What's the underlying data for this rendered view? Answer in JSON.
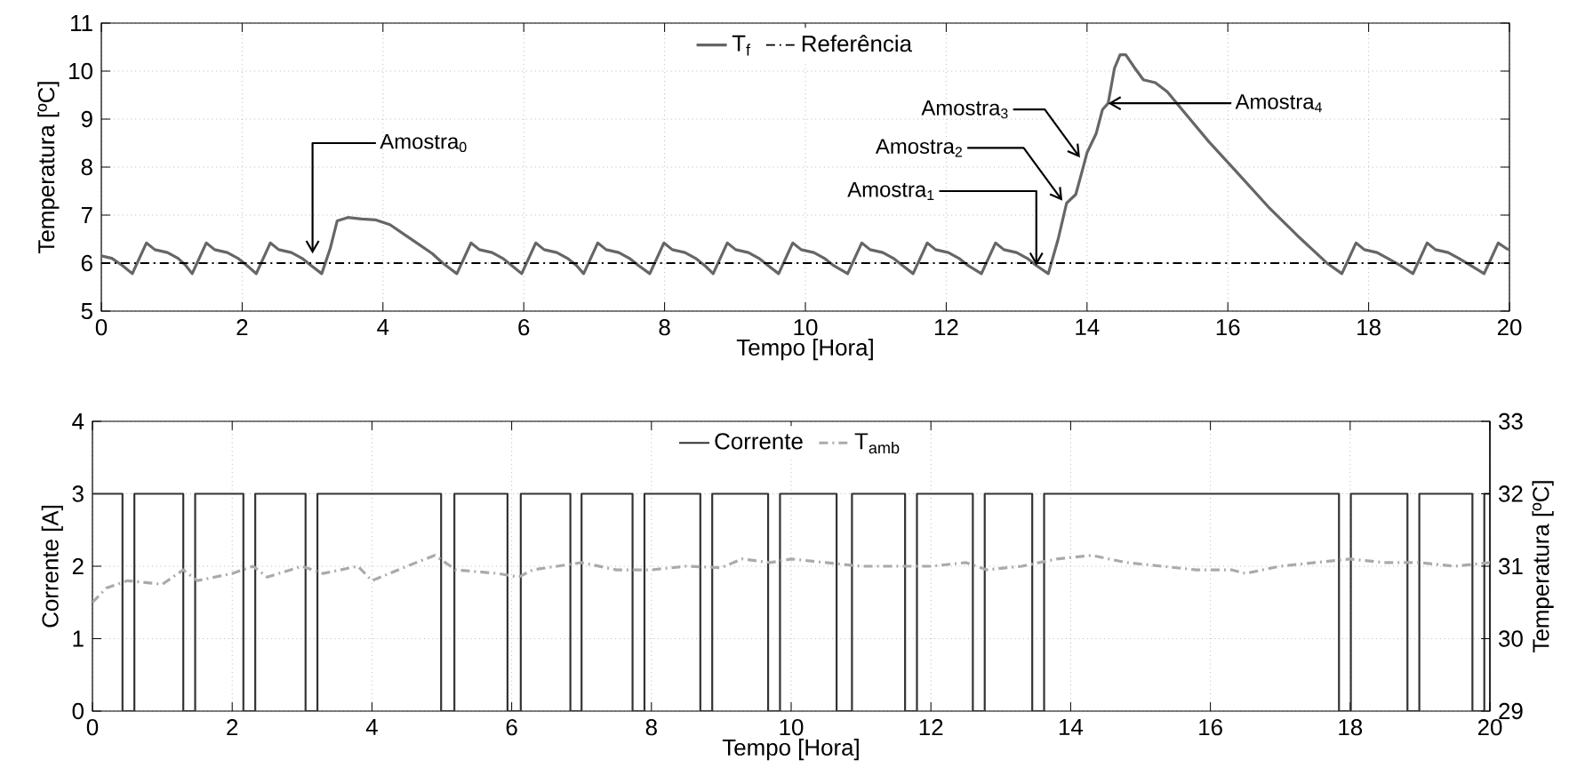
{
  "chart_data": [
    {
      "type": "line",
      "xlabel": "Tempo [Hora]",
      "ylabel": "Temperatura [ºC]",
      "xlim": [
        0,
        20
      ],
      "ylim": [
        5,
        11
      ],
      "xticks": [
        0,
        2,
        4,
        6,
        8,
        10,
        12,
        14,
        16,
        18,
        20
      ],
      "yticks": [
        5,
        6,
        7,
        8,
        9,
        10,
        11
      ],
      "grid": true,
      "legend": "top",
      "series": [
        {
          "name": "T$_{f}$",
          "color": "#666666",
          "x": [
            0,
            0.15,
            0.3,
            0.44,
            0.64,
            0.76,
            0.94,
            1.09,
            1.2,
            1.29,
            1.49,
            1.61,
            1.79,
            1.94,
            2.07,
            2.2,
            2.4,
            2.52,
            2.7,
            2.85,
            2.98,
            3.13,
            3.25,
            3.35,
            3.5,
            3.7,
            3.9,
            4.1,
            4.3,
            4.5,
            4.7,
            4.85,
            5.05,
            5.25,
            5.37,
            5.55,
            5.7,
            5.83,
            5.97,
            6.17,
            6.29,
            6.47,
            6.62,
            6.75,
            6.85,
            7.05,
            7.17,
            7.35,
            7.5,
            7.63,
            7.79,
            7.99,
            8.11,
            8.29,
            8.44,
            8.57,
            8.69,
            8.89,
            9.01,
            9.19,
            9.34,
            9.47,
            9.62,
            9.82,
            9.94,
            10.12,
            10.27,
            10.4,
            10.6,
            10.8,
            10.92,
            11.1,
            11.25,
            11.38,
            11.53,
            11.73,
            11.85,
            12.03,
            12.18,
            12.31,
            12.5,
            12.7,
            12.82,
            13.0,
            13.15,
            13.28,
            13.45,
            13.59,
            13.71,
            13.84,
            13.92,
            14.0,
            14.13,
            14.22,
            14.3,
            14.39,
            14.47,
            14.55,
            14.68,
            14.8,
            14.97,
            15.14,
            15.31,
            15.73,
            16.15,
            16.57,
            16.99,
            17.4,
            17.62,
            17.82,
            17.94,
            18.12,
            18.27,
            18.45,
            18.63,
            18.83,
            18.95,
            19.13,
            19.28,
            19.45,
            19.64,
            19.84,
            19.96,
            20.0
          ],
          "values": [
            6.15,
            6.1,
            5.95,
            5.78,
            6.42,
            6.28,
            6.22,
            6.1,
            5.95,
            5.78,
            6.42,
            6.28,
            6.22,
            6.1,
            5.95,
            5.78,
            6.42,
            6.28,
            6.22,
            6.1,
            5.95,
            5.78,
            6.3,
            6.88,
            6.95,
            6.92,
            6.9,
            6.8,
            6.6,
            6.4,
            6.2,
            6.0,
            5.78,
            6.42,
            6.28,
            6.22,
            6.1,
            5.95,
            5.78,
            6.42,
            6.28,
            6.22,
            6.1,
            5.95,
            5.78,
            6.42,
            6.28,
            6.22,
            6.1,
            5.95,
            5.78,
            6.42,
            6.28,
            6.22,
            6.1,
            5.95,
            5.78,
            6.42,
            6.28,
            6.22,
            6.1,
            5.95,
            5.78,
            6.42,
            6.28,
            6.22,
            6.1,
            5.95,
            5.78,
            6.42,
            6.28,
            6.22,
            6.1,
            5.95,
            5.78,
            6.42,
            6.28,
            6.22,
            6.1,
            5.95,
            5.78,
            6.42,
            6.28,
            6.22,
            6.1,
            5.95,
            5.78,
            6.5,
            7.25,
            7.43,
            7.86,
            8.3,
            8.7,
            9.2,
            9.33,
            10.06,
            10.34,
            10.34,
            10.06,
            9.82,
            9.76,
            9.57,
            9.27,
            8.53,
            7.86,
            7.18,
            6.57,
            6.01,
            5.78,
            6.42,
            6.28,
            6.22,
            6.1,
            5.95,
            5.78,
            6.42,
            6.28,
            6.22,
            6.1,
            5.95,
            5.78,
            6.42,
            6.3,
            6.28
          ]
        },
        {
          "name": "Referência",
          "color": "#000000",
          "line_style": "dashdot",
          "x": [
            0,
            20
          ],
          "values": [
            6,
            6
          ]
        }
      ],
      "annotations": [
        {
          "text": "Amostra$_{0}$",
          "x": 3,
          "y": 6.2
        },
        {
          "text": "Amostra$_{1}$",
          "x": 13.28,
          "y": 5.95
        },
        {
          "text": "Amostra$_{2}$",
          "x": 13.65,
          "y": 7.3
        },
        {
          "text": "Amostra$_{3}$",
          "x": 13.9,
          "y": 8.2
        },
        {
          "text": "Amostra$_{4}$",
          "x": 14.3,
          "y": 9.33
        }
      ]
    },
    {
      "type": "line",
      "xlabel": "Tempo [Hora]",
      "ylabel": "Corrente [A]",
      "y2label": "Temperatura [ºC]",
      "xlim": [
        0,
        20
      ],
      "ylim": [
        0,
        4
      ],
      "y2lim": [
        29,
        33
      ],
      "xticks": [
        0,
        2,
        4,
        6,
        8,
        10,
        12,
        14,
        16,
        18,
        20
      ],
      "yticks": [
        0,
        1,
        2,
        3,
        4
      ],
      "y2ticks": [
        29,
        30,
        31,
        32,
        33
      ],
      "grid": true,
      "legend": "top",
      "series": [
        {
          "name": "Corrente",
          "type": "step",
          "color": "#333333",
          "x": [
            0,
            0.43,
            0.6,
            1.3,
            1.47,
            2.16,
            2.33,
            3.05,
            3.22,
            4.99,
            5.18,
            5.94,
            6.13,
            6.84,
            7.0,
            7.73,
            7.9,
            8.7,
            8.87,
            9.67,
            9.84,
            10.65,
            10.87,
            11.63,
            11.8,
            12.6,
            12.77,
            13.45,
            13.62,
            17.84,
            18.01,
            18.82,
            18.99,
            19.75,
            19.92,
            20
          ],
          "values": [
            3,
            0,
            3,
            0,
            3,
            0,
            3,
            0,
            3,
            0,
            3,
            0,
            3,
            0,
            3,
            0,
            3,
            0,
            3,
            0,
            3,
            0,
            3,
            0,
            3,
            0,
            3,
            0,
            3,
            0,
            3,
            0,
            3,
            0,
            3,
            3
          ]
        },
        {
          "name": "T$_{amb}$",
          "axis": "y2",
          "color": "#aaaaaa",
          "line_style": "dashdot",
          "x": [
            0,
            0.2,
            0.5,
            1,
            1.3,
            1.5,
            2,
            2.3,
            2.5,
            3,
            3.3,
            3.8,
            4,
            4.5,
            4.9,
            5.2,
            5.8,
            6.1,
            6.3,
            7,
            7.5,
            8,
            8.5,
            9,
            9.3,
            9.7,
            10,
            10.5,
            11,
            11.5,
            12,
            12.5,
            12.8,
            13.3,
            13.8,
            14.3,
            14.8,
            15.3,
            15.8,
            16.3,
            16.5,
            17,
            17.5,
            18,
            18.5,
            19,
            19.5,
            20
          ],
          "values": [
            30.5,
            30.7,
            30.8,
            30.75,
            30.95,
            30.8,
            30.9,
            31.0,
            30.85,
            31.0,
            30.9,
            31.0,
            30.8,
            31.0,
            31.15,
            30.95,
            30.9,
            30.85,
            30.95,
            31.05,
            30.95,
            30.95,
            31.0,
            30.98,
            31.1,
            31.05,
            31.1,
            31.05,
            31.0,
            31.0,
            31.0,
            31.05,
            30.95,
            31.0,
            31.1,
            31.15,
            31.05,
            31.0,
            30.95,
            30.95,
            30.9,
            31.0,
            31.05,
            31.1,
            31.05,
            31.05,
            31.0,
            31.05
          ]
        }
      ]
    }
  ]
}
